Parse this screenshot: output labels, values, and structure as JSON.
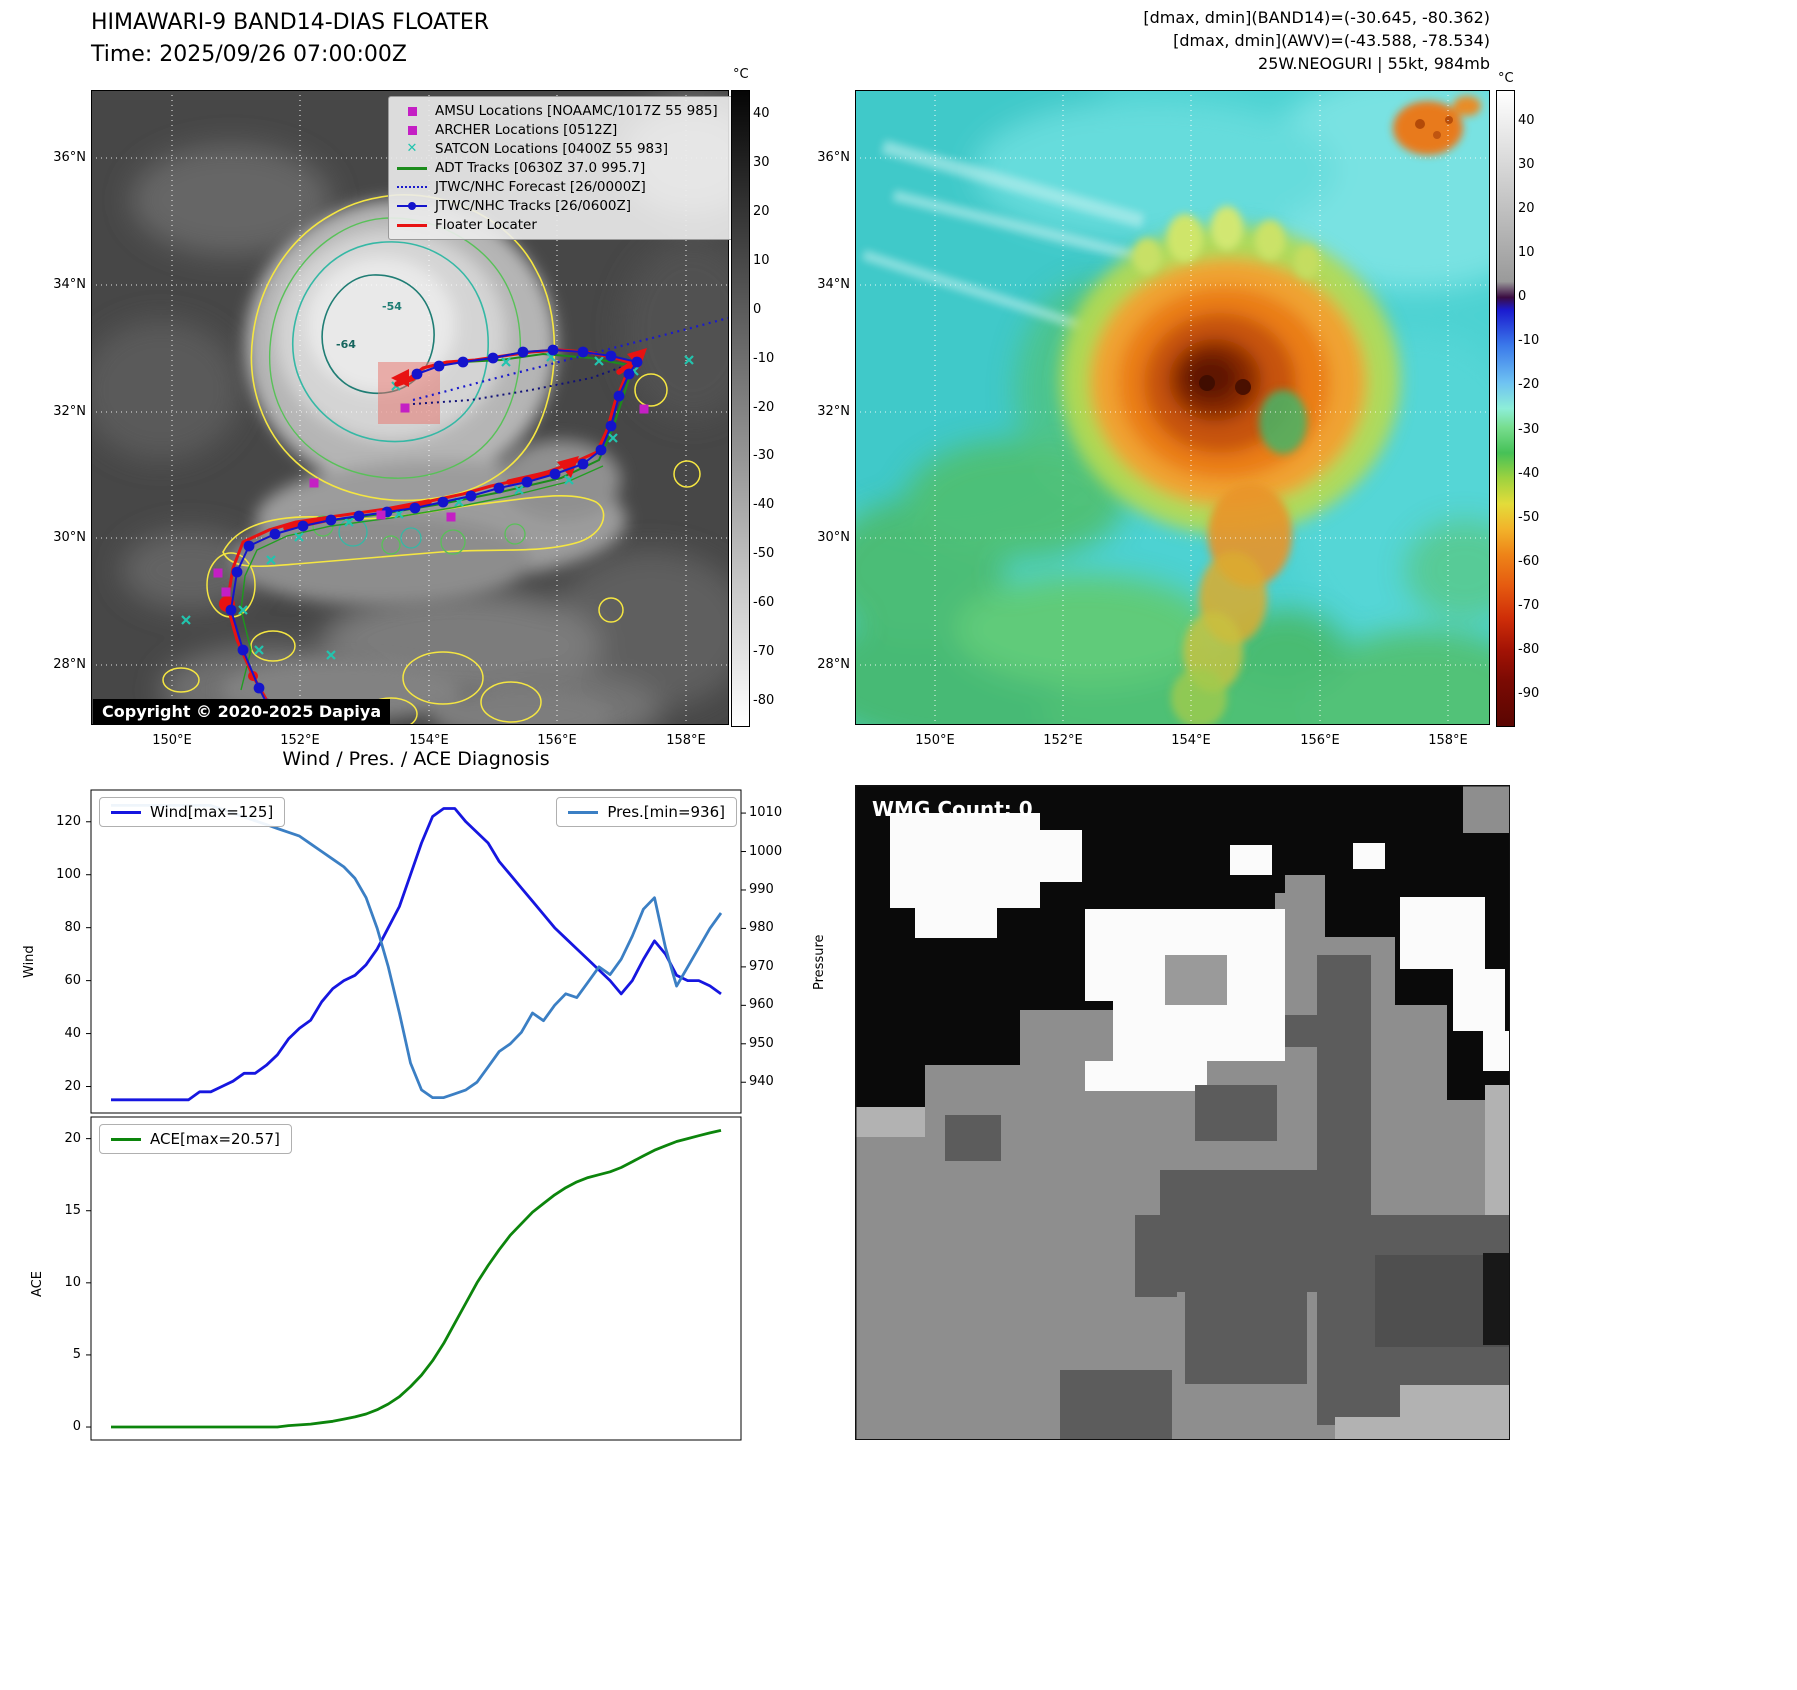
{
  "panel_a": {
    "title": "HIMAWARI-9 BAND14-DIAS FLOATER",
    "time": "Time: 2025/09/26 07:00:00Z",
    "copyright": "Copyright © 2020-2025 Dapiya",
    "legend": [
      {
        "label": "AMSU Locations [NOAAMC/1017Z 55 985]",
        "marker": "square",
        "color": "#c41fc4"
      },
      {
        "label": "ARCHER Locations [0512Z]",
        "marker": "square",
        "color": "#c41fc4"
      },
      {
        "label": "SATCON Locations [0400Z 55 983]",
        "marker": "x",
        "color": "#22c4ae"
      },
      {
        "label": "ADT Tracks [0630Z 37.0 995.7]",
        "marker": "line",
        "color": "#1c8c1c"
      },
      {
        "label": "JTWC/NHC Forecast [26/0000Z]",
        "marker": "dotted",
        "color": "#1a1acc"
      },
      {
        "label": "JTWC/NHC Tracks [26/0600Z]",
        "marker": "line-dot",
        "color": "#1414cc"
      },
      {
        "label": "Floater Locater",
        "marker": "line",
        "color": "#e81212"
      }
    ],
    "contour_labels": [
      "-54",
      "-64"
    ],
    "lat_ticks": [
      "36°N",
      "34°N",
      "32°N",
      "30°N",
      "28°N"
    ],
    "lon_ticks": [
      "150°E",
      "152°E",
      "154°E",
      "156°E",
      "158°E"
    ],
    "colorbar": {
      "unit": "°C",
      "ticks": [
        40,
        30,
        20,
        10,
        0,
        -10,
        -20,
        -30,
        -40,
        -50,
        -60,
        -70,
        -80
      ]
    }
  },
  "panel_b": {
    "header_line1": "[dmax, dmin](BAND14)=(-30.645, -80.362)",
    "header_line2": "[dmax, dmin](AWV)=(-43.588, -78.534)",
    "header_line3": "25W.NEOGURI | 55kt, 984mb",
    "lat_ticks": [
      "36°N",
      "34°N",
      "32°N",
      "30°N",
      "28°N"
    ],
    "lon_ticks": [
      "150°E",
      "152°E",
      "154°E",
      "156°E",
      "158°E"
    ],
    "colorbar": {
      "unit": "°C",
      "ticks": [
        40,
        30,
        20,
        10,
        0,
        -10,
        -20,
        -30,
        -40,
        -50,
        -60,
        -70,
        -80,
        -90
      ]
    }
  },
  "diagnosis": {
    "title": "Wind / Pres. / ACE Diagnosis",
    "ylabel_wind": "Wind",
    "ylabel_pressure": "Pressure",
    "ylabel_ace": "ACE"
  },
  "wmg": {
    "count_label": "WMG Count: 0"
  },
  "chart_data": [
    {
      "type": "line",
      "title": "Wind / Pres. / ACE Diagnosis",
      "ylabel_left": "Wind",
      "ylabel_right": "Pressure",
      "yticks_left": [
        20,
        40,
        60,
        80,
        100,
        120
      ],
      "ylim_left": [
        10,
        132
      ],
      "yticks_right": [
        940,
        950,
        960,
        970,
        980,
        990,
        1000,
        1010
      ],
      "ylim_right": [
        932,
        1016
      ],
      "legend_position": "top-left / top-right inside axes",
      "series": [
        {
          "name": "Wind[max=125]",
          "axis": "left",
          "color": "#1616e0",
          "values": [
            15,
            15,
            15,
            15,
            15,
            15,
            15,
            15,
            18,
            18,
            20,
            22,
            25,
            25,
            28,
            32,
            38,
            42,
            45,
            52,
            57,
            60,
            62,
            66,
            72,
            80,
            88,
            100,
            112,
            122,
            125,
            125,
            120,
            116,
            112,
            105,
            100,
            95,
            90,
            85,
            80,
            76,
            72,
            68,
            64,
            60,
            55,
            60,
            68,
            75,
            70,
            62,
            60,
            60,
            58,
            55
          ]
        },
        {
          "name": "Pres.[min=936]",
          "axis": "right",
          "color": "#3b7fc4",
          "values": [
            1012,
            1012,
            1012,
            1012,
            1012,
            1012,
            1012,
            1012,
            1012,
            1012,
            1011,
            1010,
            1009,
            1008,
            1007,
            1006,
            1005,
            1004,
            1002,
            1000,
            998,
            996,
            993,
            988,
            980,
            970,
            958,
            945,
            938,
            936,
            936,
            937,
            938,
            940,
            944,
            948,
            950,
            953,
            958,
            956,
            960,
            963,
            962,
            966,
            970,
            968,
            972,
            978,
            985,
            988,
            975,
            965,
            970,
            975,
            980,
            984
          ]
        }
      ]
    },
    {
      "type": "line",
      "ylabel_left": "ACE",
      "yticks_left": [
        0,
        5,
        10,
        15,
        20
      ],
      "ylim_left": [
        -0.9,
        21.5
      ],
      "series": [
        {
          "name": "ACE[max=20.57]",
          "axis": "left",
          "color": "#0c850c",
          "values": [
            0,
            0,
            0,
            0,
            0,
            0,
            0,
            0,
            0,
            0,
            0,
            0,
            0,
            0,
            0,
            0,
            0.1,
            0.15,
            0.2,
            0.3,
            0.4,
            0.55,
            0.7,
            0.9,
            1.2,
            1.6,
            2.1,
            2.8,
            3.6,
            4.6,
            5.8,
            7.2,
            8.6,
            10.0,
            11.2,
            12.3,
            13.3,
            14.1,
            14.9,
            15.5,
            16.1,
            16.6,
            17.0,
            17.3,
            17.5,
            17.7,
            18.0,
            18.4,
            18.8,
            19.2,
            19.5,
            19.8,
            20.0,
            20.2,
            20.4,
            20.57
          ]
        }
      ]
    }
  ]
}
